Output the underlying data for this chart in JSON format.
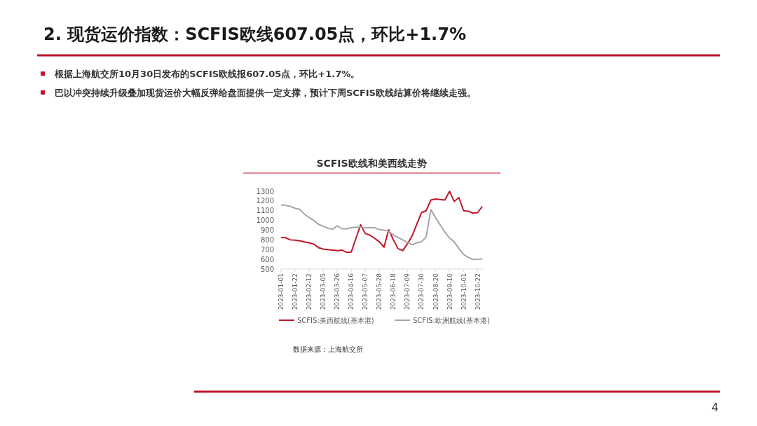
{
  "chart_data": {
    "type": "line",
    "title": "SCFIS欧线和美西线走势",
    "annotations": [
      "2. 现货运价指数：SCFIS欧线607.05点，环比+1.7%",
      "根据上海航交所10月30日发布的SCFIS欧线报607.05点，环比+1.7%。",
      "巴以冲突持续升级叠加现货运价大幅反弹给盘面提供一定支撑，预计下周SCFIS欧线结算价将继续走强。",
      "数据来源：上海航交所",
      "4"
    ],
    "x": [
      "2023-01-01",
      "2023-01-08",
      "2023-01-15",
      "2023-01-22",
      "2023-01-29",
      "2023-02-05",
      "2023-02-12",
      "2023-02-19",
      "2023-02-26",
      "2023-03-05",
      "2023-03-12",
      "2023-03-19",
      "2023-03-26",
      "2023-04-02",
      "2023-04-09",
      "2023-04-16",
      "2023-04-23",
      "2023-04-30",
      "2023-05-07",
      "2023-05-14",
      "2023-05-21",
      "2023-05-28",
      "2023-06-04",
      "2023-06-11",
      "2023-06-18",
      "2023-06-25",
      "2023-07-02",
      "2023-07-09",
      "2023-07-16",
      "2023-07-23",
      "2023-07-30",
      "2023-08-06",
      "2023-08-13",
      "2023-08-20",
      "2023-08-27",
      "2023-09-03",
      "2023-09-10",
      "2023-09-17",
      "2023-09-24",
      "2023-10-01",
      "2023-10-08",
      "2023-10-15",
      "2023-10-22",
      "2023-10-29"
    ],
    "series": [
      {
        "name": "SCFIS:美西航线(基本港)",
        "color": "#c0152a",
        "values": [
          825,
          822,
          800,
          798,
          790,
          780,
          770,
          757,
          720,
          705,
          700,
          695,
          690,
          695,
          672,
          675,
          815,
          955,
          865,
          850,
          815,
          780,
          725,
          905,
          800,
          710,
          690,
          760,
          840,
          960,
          1080,
          1100,
          1210,
          1220,
          1215,
          1210,
          1300,
          1195,
          1235,
          1100,
          1095,
          1075,
          1080,
          1145
        ]
      },
      {
        "name": "SCFIS:欧洲航线(基本港)",
        "color": "#a6a6a6",
        "values": [
          1160,
          1155,
          1145,
          1125,
          1115,
          1065,
          1030,
          1000,
          960,
          940,
          920,
          910,
          945,
          915,
          915,
          925,
          930,
          930,
          925,
          925,
          925,
          905,
          900,
          890,
          850,
          825,
          800,
          775,
          750,
          770,
          780,
          830,
          1110,
          1030,
          955,
          880,
          820,
          780,
          710,
          650,
          620,
          600,
          600,
          607
        ]
      }
    ],
    "xlim": [
      "2023-01-01",
      "2023-10-31"
    ],
    "xticks": [
      "2023-01-01",
      "2023-01-22",
      "2023-02-12",
      "2023-03-05",
      "2023-03-26",
      "2023-04-16",
      "2023-05-07",
      "2023-05-28",
      "2023-06-18",
      "2023-07-09",
      "2023-07-30",
      "2023-08-20",
      "2023-09-10",
      "2023-10-01",
      "2023-10-22"
    ],
    "ylim": [
      500,
      1300
    ],
    "yticks": [
      500,
      600,
      700,
      800,
      900,
      1000,
      1100,
      1200,
      1300
    ],
    "grid": false,
    "legend": "bottom",
    "marker": "none",
    "line_style": "solid"
  }
}
